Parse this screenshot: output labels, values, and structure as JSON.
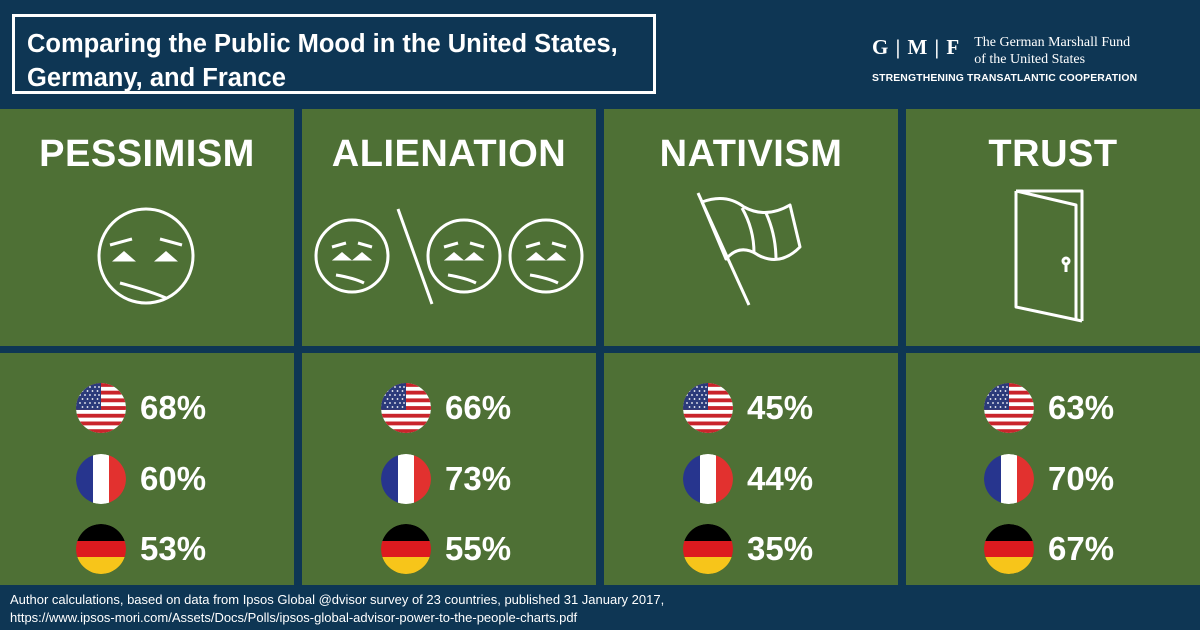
{
  "header": {
    "title_line1": "Comparing the Public Mood in the United States,",
    "title_line2": "Germany, and France"
  },
  "brand": {
    "logo": "G | M | F",
    "name_line1": "The German Marshall Fund",
    "name_line2": "of the United States",
    "tagline": "STRENGTHENING TRANSATLANTIC COOPERATION"
  },
  "colors": {
    "background": "#0e3654",
    "panel": "#4e7035",
    "text": "#ffffff"
  },
  "categories": [
    {
      "title": "PESSIMISM",
      "icon": "sad-face-icon",
      "values": [
        {
          "country": "us-flag-icon",
          "value": "68%"
        },
        {
          "country": "france-flag-icon",
          "value": "60%"
        },
        {
          "country": "germany-flag-icon",
          "value": "53%"
        }
      ]
    },
    {
      "title": "ALIENATION",
      "icon": "alienated-faces-icon",
      "values": [
        {
          "country": "us-flag-icon",
          "value": "66%"
        },
        {
          "country": "france-flag-icon",
          "value": "73%"
        },
        {
          "country": "germany-flag-icon",
          "value": "55%"
        }
      ]
    },
    {
      "title": "NATIVISM",
      "icon": "flag-icon",
      "values": [
        {
          "country": "us-flag-icon",
          "value": "45%"
        },
        {
          "country": "france-flag-icon",
          "value": "44%"
        },
        {
          "country": "germany-flag-icon",
          "value": "35%"
        }
      ]
    },
    {
      "title": "TRUST",
      "icon": "open-door-icon",
      "values": [
        {
          "country": "us-flag-icon",
          "value": "63%"
        },
        {
          "country": "france-flag-icon",
          "value": "70%"
        },
        {
          "country": "germany-flag-icon",
          "value": "67%"
        }
      ]
    }
  ],
  "footer": {
    "line1": "Author calculations, based on data from Ipsos Global @dvisor survey of 23 countries, published 31 January 2017,",
    "line2": "https://www.ipsos-mori.com/Assets/Docs/Polls/ipsos-global-advisor-power-to-the-people-charts.pdf"
  }
}
